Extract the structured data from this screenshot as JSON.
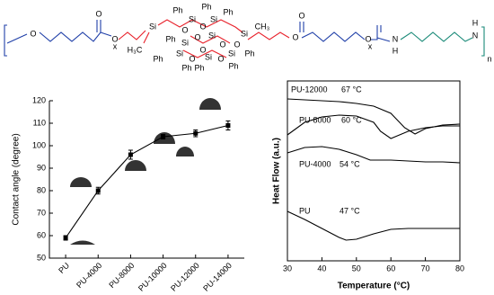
{
  "structure": {
    "labels": [
      "O",
      "O",
      "x",
      "O",
      "Si",
      "H₃C",
      "Ph",
      "Ph",
      "Ph",
      "Si",
      "Si",
      "O",
      "O",
      "Ph",
      "Si",
      "O",
      "Si",
      "O",
      "O",
      "Ph",
      "Si",
      "O",
      "Si",
      "Ph",
      "O",
      "Si",
      "Ph",
      "Ph",
      "Ph",
      "Si",
      "CH₃",
      "O",
      "O",
      "O",
      "x",
      "O",
      "N",
      "H",
      "N",
      "H",
      "n"
    ]
  },
  "chart_data": [
    {
      "type": "line",
      "y_label": "Contact angle (degree)",
      "categories": [
        "PU",
        "PU-4000",
        "PU-8000",
        "PU-10000",
        "PU-12000",
        "PU-14000"
      ],
      "series": [
        {
          "color": "#000000",
          "values": [
            59,
            80,
            96,
            104,
            105.5,
            109
          ],
          "errors": [
            1,
            1.5,
            2,
            1,
            1.5,
            2
          ]
        }
      ],
      "ylim": [
        50,
        120
      ],
      "yticks": [
        50,
        60,
        70,
        80,
        90,
        100,
        110,
        120
      ]
    },
    {
      "type": "line",
      "x_label": "Temperature (°C)",
      "y_label": "Heat Flow (a.u.)",
      "annotations": [
        "PU-12000",
        "67 °C",
        "PU-8000",
        "60 °C",
        "PU-4000",
        "54 °C",
        "PU",
        "47 °C"
      ],
      "series": [
        {
          "color": "#000000",
          "x": [
            30,
            35,
            40,
            45,
            50,
            55,
            60,
            64,
            67,
            70,
            75,
            80
          ],
          "values": [
            9.0,
            8.95,
            8.9,
            8.85,
            8.75,
            8.6,
            8.2,
            7.4,
            7.05,
            7.35,
            7.55,
            7.6
          ]
        },
        {
          "color": "#000000",
          "x": [
            30,
            35,
            40,
            45,
            50,
            55,
            57,
            60,
            65,
            70,
            75,
            80
          ],
          "values": [
            7.0,
            7.7,
            8.0,
            8.1,
            8.05,
            7.7,
            7.2,
            6.8,
            7.2,
            7.4,
            7.5,
            7.5
          ]
        },
        {
          "color": "#000000",
          "x": [
            30,
            35,
            40,
            45,
            50,
            54,
            60,
            65,
            70,
            75,
            80
          ],
          "values": [
            6.0,
            6.3,
            6.35,
            6.2,
            5.9,
            5.6,
            5.6,
            5.55,
            5.5,
            5.5,
            5.45
          ]
        },
        {
          "color": "#000000",
          "x": [
            30,
            35,
            40,
            45,
            47,
            50,
            55,
            60,
            65,
            70,
            75,
            80
          ],
          "values": [
            2.75,
            2.3,
            1.8,
            1.3,
            1.15,
            1.2,
            1.5,
            1.75,
            1.8,
            1.8,
            1.8,
            1.8
          ]
        }
      ],
      "xlim": [
        30,
        80
      ],
      "xticks": [
        30,
        40,
        50,
        60,
        70,
        80
      ],
      "ylim": [
        0,
        10
      ]
    }
  ]
}
